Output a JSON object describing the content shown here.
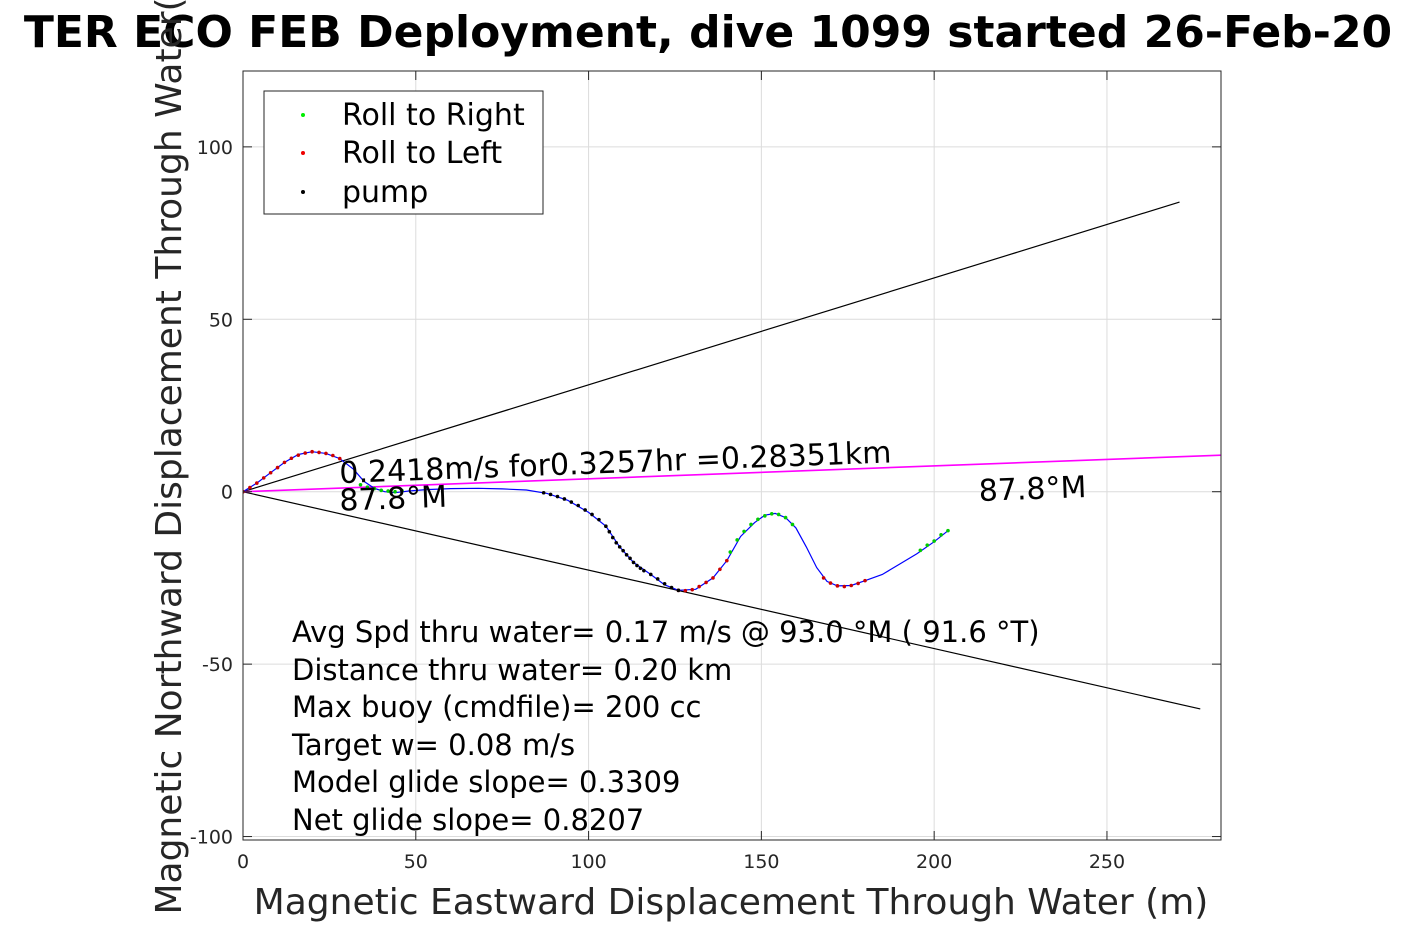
{
  "chart_data": {
    "type": "scatter",
    "title": "TER ECO FEB Deployment, dive 1099 started 26-Feb-20",
    "xlabel": "Magnetic Eastward Displacement Through Water (m)",
    "ylabel": "Magnetic Northward Displacement Through Water(",
    "xlim": [
      0,
      283
    ],
    "ylim": [
      -101,
      122
    ],
    "xticks": [
      0,
      50,
      100,
      150,
      200,
      250
    ],
    "yticks": [
      -100,
      -50,
      0,
      50,
      100
    ],
    "grid": true,
    "legend": {
      "placement": "top-left",
      "entries": [
        {
          "label": "Roll to Right",
          "color": "#00ee00"
        },
        {
          "label": "Roll to Left",
          "color": "#ee0000"
        },
        {
          "label": "pump",
          "color": "#000000"
        }
      ]
    },
    "track": {
      "color": "#0000ff",
      "points": [
        [
          0,
          0
        ],
        [
          4,
          2.5
        ],
        [
          8,
          5.5
        ],
        [
          12,
          8.5
        ],
        [
          16,
          10.8
        ],
        [
          20,
          11.6
        ],
        [
          24,
          11.1
        ],
        [
          28,
          9.6
        ],
        [
          32,
          6.5
        ],
        [
          35,
          3
        ],
        [
          38,
          1
        ],
        [
          41,
          0
        ],
        [
          44,
          -0.3
        ],
        [
          48,
          0.2
        ],
        [
          53,
          0.6
        ],
        [
          60,
          0.9
        ],
        [
          68,
          1
        ],
        [
          75,
          0.8
        ],
        [
          82,
          0.5
        ],
        [
          88,
          -0.5
        ],
        [
          94,
          -2.5
        ],
        [
          100,
          -6
        ],
        [
          105,
          -10
        ],
        [
          109,
          -16
        ],
        [
          113,
          -20.5
        ],
        [
          118,
          -24
        ],
        [
          122,
          -27
        ],
        [
          126,
          -28.6
        ],
        [
          131,
          -28.3
        ],
        [
          136,
          -25
        ],
        [
          140,
          -20
        ],
        [
          144,
          -13
        ],
        [
          148,
          -9
        ],
        [
          151,
          -6.8
        ],
        [
          154,
          -6.3
        ],
        [
          157,
          -7.5
        ],
        [
          160,
          -10.5
        ],
        [
          163,
          -16
        ],
        [
          166,
          -22
        ],
        [
          169,
          -26
        ],
        [
          172,
          -27.3
        ],
        [
          176,
          -27.2
        ],
        [
          180,
          -25.8
        ],
        [
          185,
          -24
        ],
        [
          190,
          -21
        ],
        [
          195,
          -18
        ],
        [
          200,
          -14.5
        ],
        [
          204,
          -11.3
        ]
      ]
    },
    "series": [
      {
        "name": "Roll to Right",
        "color": "#00cc00",
        "points": [
          [
            34,
            2
          ],
          [
            36,
            1.3
          ],
          [
            38,
            0.9
          ],
          [
            40,
            0.4
          ],
          [
            42,
            0.2
          ],
          [
            44,
            0
          ],
          [
            46,
            0.3
          ],
          [
            141,
            -17.5
          ],
          [
            143,
            -14
          ],
          [
            145,
            -11.5
          ],
          [
            147,
            -9.5
          ],
          [
            149,
            -8
          ],
          [
            151,
            -7
          ],
          [
            153,
            -6.4
          ],
          [
            155,
            -6.6
          ],
          [
            157,
            -7.5
          ],
          [
            159,
            -9.5
          ],
          [
            196,
            -17
          ],
          [
            198,
            -15.5
          ],
          [
            200,
            -14.3
          ],
          [
            202,
            -12.5
          ],
          [
            204,
            -11.3
          ]
        ]
      },
      {
        "name": "Roll to Left",
        "color": "#cc0000",
        "points": [
          [
            0,
            0
          ],
          [
            2,
            1.2
          ],
          [
            4,
            2.5
          ],
          [
            6,
            4
          ],
          [
            8,
            5.5
          ],
          [
            10,
            7
          ],
          [
            12,
            8.5
          ],
          [
            14,
            9.7
          ],
          [
            16,
            10.6
          ],
          [
            18,
            11.2
          ],
          [
            20,
            11.6
          ],
          [
            22,
            11.4
          ],
          [
            24,
            11.1
          ],
          [
            26,
            10.5
          ],
          [
            28,
            9.6
          ],
          [
            126,
            -28.6
          ],
          [
            128,
            -28.7
          ],
          [
            130,
            -28.4
          ],
          [
            132,
            -27.5
          ],
          [
            134,
            -26.3
          ],
          [
            136,
            -25
          ],
          [
            138,
            -22.5
          ],
          [
            140,
            -20
          ],
          [
            168,
            -25
          ],
          [
            170,
            -26.5
          ],
          [
            172,
            -27.3
          ],
          [
            174,
            -27.5
          ],
          [
            176,
            -27.2
          ],
          [
            178,
            -26.6
          ],
          [
            180,
            -25.8
          ]
        ]
      },
      {
        "name": "pump",
        "color": "#000000",
        "points": [
          [
            87,
            -0.3
          ],
          [
            89,
            -0.8
          ],
          [
            91,
            -1.4
          ],
          [
            93,
            -2.1
          ],
          [
            95,
            -3
          ],
          [
            97,
            -4
          ],
          [
            99,
            -5.3
          ],
          [
            101,
            -6.6
          ],
          [
            103,
            -8.1
          ],
          [
            105,
            -10
          ],
          [
            106,
            -11.6
          ],
          [
            107,
            -13.3
          ],
          [
            108,
            -14.8
          ],
          [
            109,
            -16
          ],
          [
            110,
            -17.1
          ],
          [
            111,
            -18.3
          ],
          [
            112,
            -19.3
          ],
          [
            113,
            -20.5
          ],
          [
            114,
            -21.4
          ],
          [
            115,
            -22.2
          ],
          [
            116,
            -22.9
          ],
          [
            118,
            -24
          ],
          [
            120,
            -25.3
          ],
          [
            122,
            -26.7
          ],
          [
            124,
            -27.8
          ],
          [
            126,
            -28.6
          ]
        ]
      }
    ],
    "lines": [
      {
        "from": [
          0,
          0
        ],
        "to": [
          271,
          84
        ],
        "color": "#000000"
      },
      {
        "from": [
          0,
          0
        ],
        "to": [
          277,
          -63
        ],
        "color": "#000000"
      },
      {
        "from": [
          0,
          0
        ],
        "to": [
          283,
          10.6
        ],
        "color": "#ff00ff"
      }
    ],
    "annotations": [
      {
        "text": "0.2418m/s for0.3257hr =0.28351km",
        "x": 28,
        "y": 2.5,
        "angle": 2.15
      },
      {
        "text": "87.8°M",
        "x": 28,
        "y": -5.5,
        "angle": 2.15
      },
      {
        "text": "87.8°M",
        "x": 213,
        "y": -2.7,
        "angle": 2.15
      }
    ],
    "stats": [
      "Avg Spd thru water=  0.17 m/s @  93.0 °M ( 91.6 °T)",
      "Distance thru water=  0.20 km",
      "Max buoy (cmdfile)= 200 cc",
      "Target w= 0.08 m/s",
      "Model glide slope= 0.3309",
      "Net glide slope= 0.8207"
    ]
  }
}
